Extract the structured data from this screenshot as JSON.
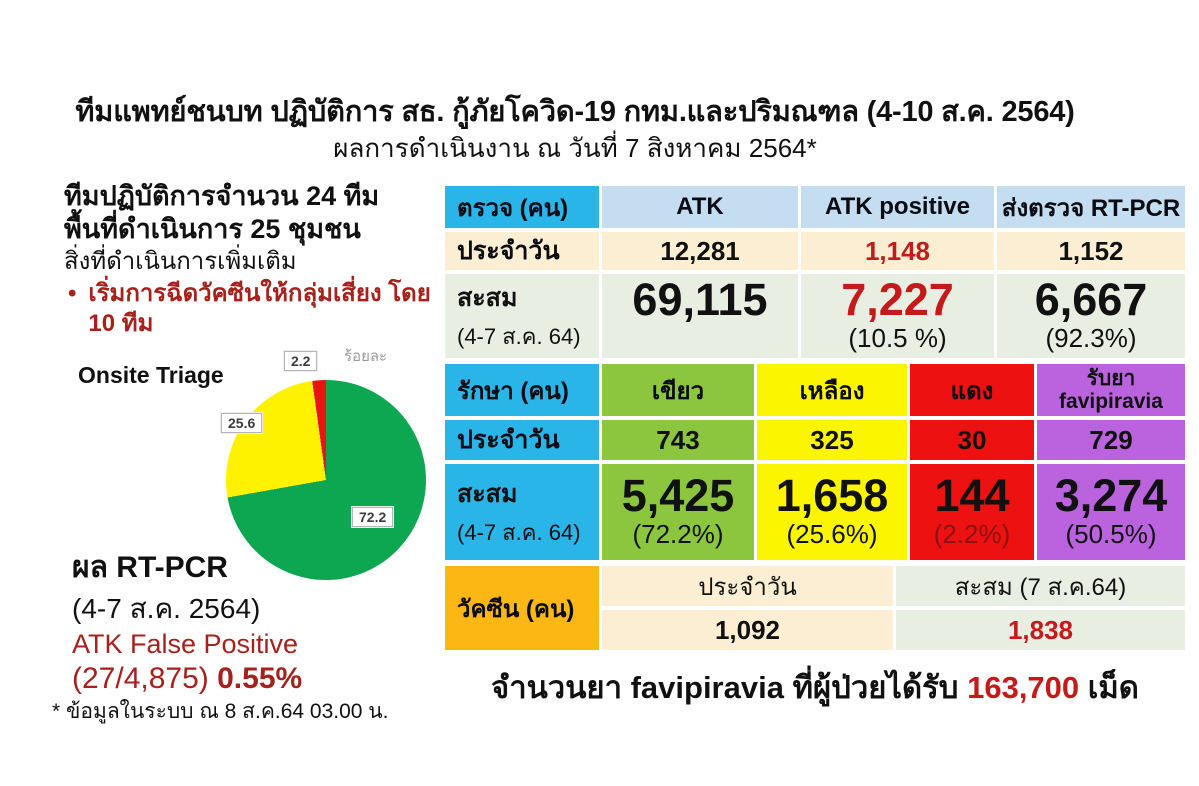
{
  "colors": {
    "cyan": "#29b5e8",
    "light_blue": "#c5ddf0",
    "cream": "#fceed3",
    "sage": "#e8eee1",
    "green": "#8cc63e",
    "yellow": "#fcf500",
    "red": "#ee1111",
    "purple": "#bb63df",
    "orange": "#fcb714",
    "value_red": "#c61a1a",
    "dark_red": "#a8201c",
    "pie_green": "#0ca750",
    "pie_yellow": "#fef200",
    "pie_red": "#e81414"
  },
  "title": {
    "line1": "ทีมแพทย์ชนบท ปฏิบัติการ สธ. กู้ภัยโควิด-19 กทม.และปริมณฑล (4-10 ส.ค. 2564)",
    "line2": "ผลการดำเนินงาน ณ วันที่ 7 สิงหาคม 2564*"
  },
  "left_panel": {
    "teams_line": "ทีมปฏิบัติการจำนวน 24 ทีม",
    "areas_line": "พื้นที่ดำเนินการ  25 ชุมชน",
    "extra_line": "สิ่งที่ดำเนินการเพิ่มเติม",
    "bullet_mark": "•",
    "bullet_text": "เริ่มการฉีดวัคซีนให้กลุ่มเสี่ยง โดย 10 ทีม"
  },
  "chart_data": {
    "type": "pie",
    "title": "Onsite Triage",
    "unit_note": "ร้อยละ",
    "legend_position": "none",
    "slices": [
      {
        "label": "เขียว",
        "value": 72.2,
        "color": "#0ca750"
      },
      {
        "label": "เหลือง",
        "value": 25.6,
        "color": "#fef200"
      },
      {
        "label": "แดง",
        "value": 2.2,
        "color": "#e81414"
      }
    ]
  },
  "rt_pcr": {
    "title": "ผล RT-PCR",
    "period": "(4-7 ส.ค. 2564)",
    "false_positive_label": "ATK False Positive",
    "false_positive_fraction": "(27/4,875)",
    "false_positive_percent": "0.55%"
  },
  "footnote": "* ข้อมูลในระบบ ณ 8 ส.ค.64 03.00 น.",
  "test_table": {
    "header": [
      "ตรวจ (คน)",
      "ATK",
      "ATK positive",
      "ส่งตรวจ RT-PCR"
    ],
    "daily": {
      "label": "ประจำวัน",
      "atk": "12,281",
      "atk_positive": "1,148",
      "rt_pcr": "1,152"
    },
    "cumulative": {
      "label": "สะสม",
      "period": "(4-7 ส.ค. 64)",
      "atk": "69,115",
      "atk_positive": "7,227",
      "atk_positive_pct": "(10.5 %)",
      "rt_pcr": "6,667",
      "rt_pcr_pct": "(92.3%)"
    }
  },
  "treat_table": {
    "header": [
      "รักษา (คน)",
      "เขียว",
      "เหลือง",
      "แดง",
      "รับยา favipiravia"
    ],
    "daily": {
      "label": "ประจำวัน",
      "green": "743",
      "yellow": "325",
      "red": "30",
      "favi": "729"
    },
    "cumulative": {
      "label": "สะสม",
      "period": "(4-7 ส.ค. 64)",
      "green": "5,425",
      "green_pct": "(72.2%)",
      "yellow": "1,658",
      "yellow_pct": "(25.6%)",
      "red": "144",
      "red_pct": "(2.2%)",
      "favi": "3,274",
      "favi_pct": "(50.5%)"
    }
  },
  "vaccine_table": {
    "label": "วัคซีน (คน)",
    "col_daily": "ประจำวัน",
    "col_cumulative": "สะสม (7 ส.ค.64)",
    "daily_value": "1,092",
    "cumulative_value": "1,838"
  },
  "favipiravia_line": {
    "prefix": "จำนวนยา favipiravia ที่ผู้ป่วยได้รับ",
    "value": "163,700",
    "suffix": "เม็ด"
  }
}
